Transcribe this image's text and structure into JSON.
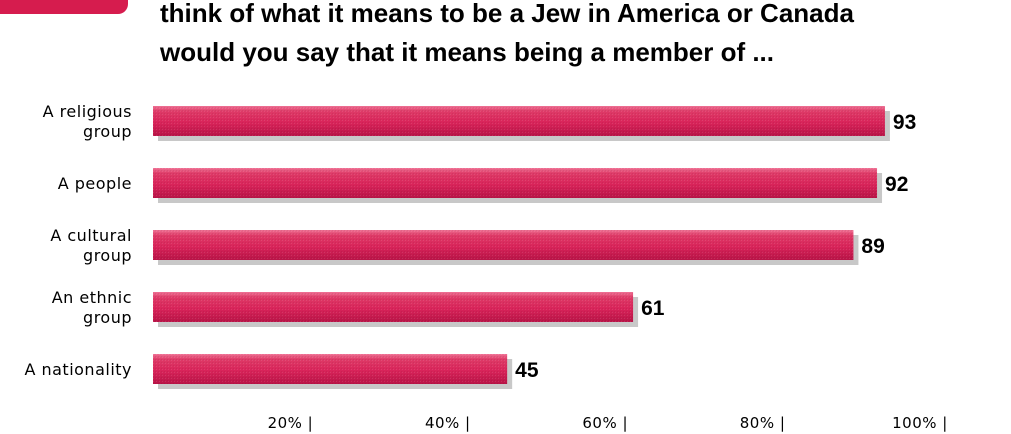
{
  "header": {
    "title_line_1": "think of what it means to be a Jew in America or Canada",
    "title_line_2": "would you say that it means being a member of ..."
  },
  "colors": {
    "bar_fill": "#d9245a",
    "bar_highlight": "#ee7194",
    "bar_shadow": "#c8c8c8",
    "accent": "#d61c4e",
    "text": "#000000"
  },
  "chart_data": {
    "type": "bar",
    "orientation": "horizontal",
    "title": "think of what it means to be a Jew in America or Canada would you say that it means being a member of ...",
    "categories": [
      [
        "A religious",
        "group"
      ],
      [
        "A people"
      ],
      [
        "A cultural",
        "group"
      ],
      [
        "An ethnic",
        "group"
      ],
      [
        "A nationality"
      ]
    ],
    "values": [
      93,
      92,
      89,
      61,
      45
    ],
    "data_labels": [
      "93",
      "92",
      "89",
      "61",
      "45"
    ],
    "xlim": [
      0,
      100
    ],
    "x_ticks": [
      {
        "value": 20,
        "label": "20% |"
      },
      {
        "value": 40,
        "label": "40% |"
      },
      {
        "value": 60,
        "label": "60% |"
      },
      {
        "value": 80,
        "label": "80% |"
      },
      {
        "value": 100,
        "label": "100% |"
      }
    ],
    "grid": false,
    "legend": "none"
  }
}
